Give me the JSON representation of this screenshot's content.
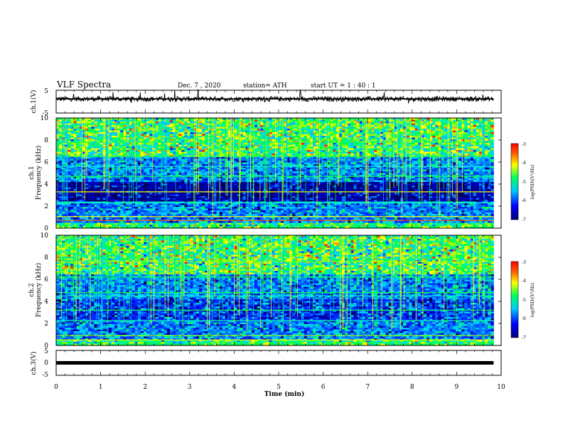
{
  "header": {
    "title": "VLF Spectra",
    "date": "Dec. 7 , 2020",
    "station": "station= ATH",
    "start_ut": "start  UT =   1 : 40 : 1"
  },
  "chart_data": [
    {
      "type": "line",
      "id": "ch1-waveform",
      "ylabel": "ch.1(V)",
      "ylim": [
        -5,
        5
      ],
      "ytick_labels": [
        "5",
        "-5"
      ],
      "xlim": [
        0,
        10
      ],
      "x_end": 9.83,
      "baseline_value": 1.2,
      "line_color": "#000000"
    },
    {
      "type": "heatmap",
      "id": "ch1-spectrogram",
      "ylabel_top": "ch.1",
      "ylabel": "Frequency  (kHz)",
      "ylim": [
        0,
        10
      ],
      "ytick_labels": [
        "0",
        "2",
        "4",
        "6",
        "8",
        "10"
      ],
      "xlim": [
        0,
        10
      ],
      "x_end": 9.83,
      "colorbar": {
        "label": "log(PSD)(V²/Hz)",
        "range": [
          -7,
          -3
        ],
        "tick_labels": [
          "-3",
          "-4",
          "-5",
          "-6",
          "-7"
        ]
      }
    },
    {
      "type": "heatmap",
      "id": "ch2-spectrogram",
      "ylabel_top": "ch.2",
      "ylabel": "Frequency  (kHz)",
      "ylim": [
        0,
        10
      ],
      "ytick_labels": [
        "0",
        "2",
        "4",
        "6",
        "8",
        "10"
      ],
      "xlim": [
        0,
        10
      ],
      "x_end": 9.83,
      "colorbar": {
        "label": "log(PSD)(V²/Hz)",
        "range": [
          -7,
          -3
        ],
        "tick_labels": [
          "-3",
          "-4",
          "-5",
          "-6",
          "-7"
        ]
      }
    },
    {
      "type": "line",
      "id": "ch3-waveform",
      "ylabel": "ch.3(V)",
      "ylim": [
        -5,
        5
      ],
      "ytick_labels": [
        "5",
        "0",
        "-5"
      ],
      "xlim": [
        0,
        10
      ],
      "x_end": 9.83,
      "baseline_value": 0,
      "line_color": "#000000",
      "xlabel": "Time  (min)",
      "xtick_labels": [
        "0",
        "1",
        "2",
        "3",
        "4",
        "5",
        "6",
        "7",
        "8",
        "9",
        "10"
      ]
    }
  ]
}
